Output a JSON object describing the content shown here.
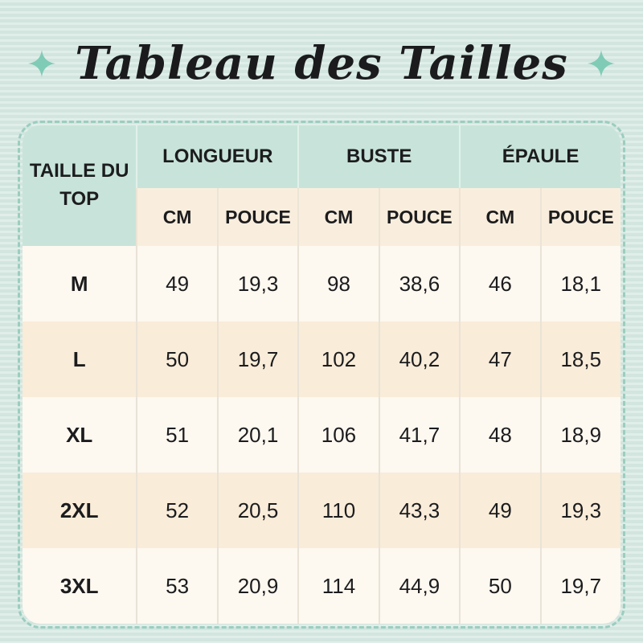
{
  "title": {
    "text": "Tableau des Tailles"
  },
  "decor": {
    "left_sparkle": "four-point-star",
    "right_sparkle": "four-point-star",
    "sparkle_color": "#7fcbb6"
  },
  "colors": {
    "page_background": "#d7e9e3",
    "dashed_border": "#9bcdbf",
    "header_green": "#c8e4da",
    "header_cream": "#f9eedd",
    "row_light": "#fdf8f0",
    "row_cream": "#f9ecd9",
    "text": "#1c1c1e"
  },
  "chart_data": {
    "type": "table",
    "title": "Tableau des Tailles",
    "corner_header": {
      "line1": "TAILLE DU",
      "line2": "TOP"
    },
    "column_groups": [
      {
        "label": "LONGUEUR"
      },
      {
        "label": "BUSTE"
      },
      {
        "label": "ÉPAULE"
      }
    ],
    "sub_headers": [
      "CM",
      "POUCE",
      "CM",
      "POUCE",
      "CM",
      "POUCE"
    ],
    "rows": [
      {
        "size": "M",
        "values": [
          "49",
          "19,3",
          "98",
          "38,6",
          "46",
          "18,1"
        ]
      },
      {
        "size": "L",
        "values": [
          "50",
          "19,7",
          "102",
          "40,2",
          "47",
          "18,5"
        ]
      },
      {
        "size": "XL",
        "values": [
          "51",
          "20,1",
          "106",
          "41,7",
          "48",
          "18,9"
        ]
      },
      {
        "size": "2XL",
        "values": [
          "52",
          "20,5",
          "110",
          "43,3",
          "49",
          "19,3"
        ]
      },
      {
        "size": "3XL",
        "values": [
          "53",
          "20,9",
          "114",
          "44,9",
          "50",
          "19,7"
        ]
      }
    ]
  }
}
